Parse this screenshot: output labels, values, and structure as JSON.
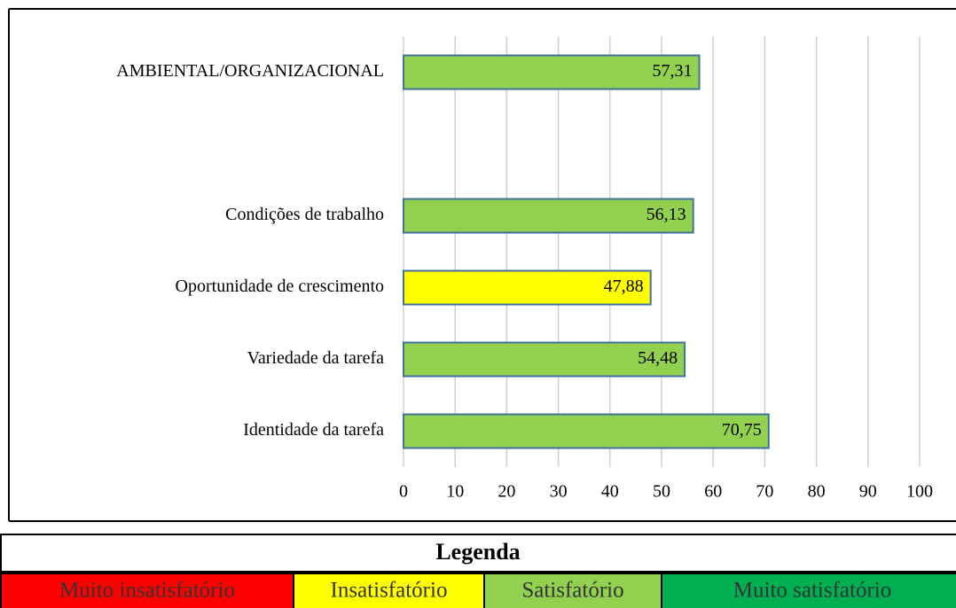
{
  "chart_data": {
    "type": "bar",
    "orientation": "horizontal",
    "categories": [
      "AMBIENTAL/ORGANIZACIONAL",
      null,
      "Condições de trabalho",
      "Oportunidade de crescimento",
      "Variedade da tarefa",
      "Identidade da tarefa"
    ],
    "values": [
      57.31,
      null,
      56.13,
      47.88,
      54.48,
      70.75
    ],
    "value_labels": [
      "57,31",
      null,
      "56,13",
      "47,88",
      "54,48",
      "70,75"
    ],
    "colors": [
      "#92d050",
      null,
      "#92d050",
      "#ffff00",
      "#92d050",
      "#92d050"
    ],
    "bar_border": "#41719c",
    "xlim": [
      0,
      100
    ],
    "xticks": [
      0,
      10,
      20,
      30,
      40,
      50,
      60,
      70,
      80,
      90,
      100
    ],
    "grid": true
  },
  "legend_table": {
    "title": "Legenda",
    "items": [
      {
        "label": "Muito insatisfatório",
        "color": "#ff0000"
      },
      {
        "label": "Insatisfatório",
        "color": "#ffff00"
      },
      {
        "label": "Satisfatório",
        "color": "#92d050"
      },
      {
        "label": "Muito satisfatório",
        "color": "#00b050"
      }
    ]
  }
}
